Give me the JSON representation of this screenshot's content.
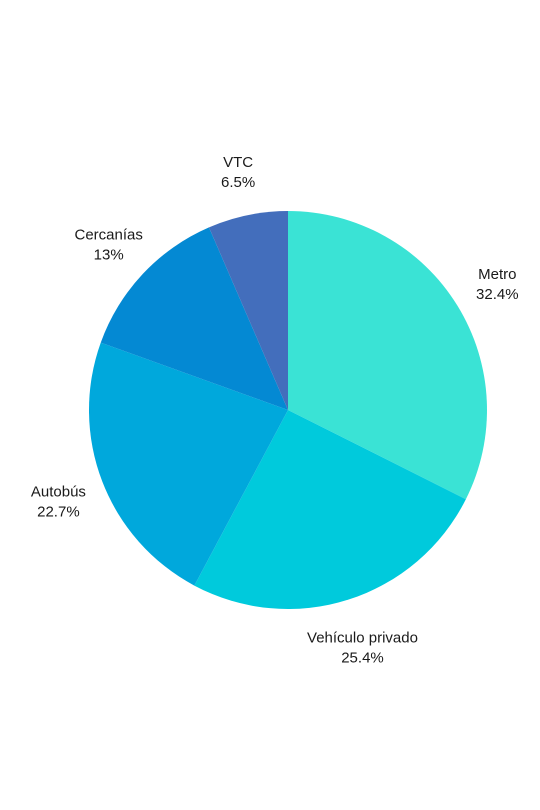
{
  "chart_data": {
    "type": "pie",
    "title": "",
    "start_angle_deg": 0,
    "direction": "clockwise",
    "slices": [
      {
        "label": "Metro",
        "value": 32.4,
        "value_label": "32.4%",
        "color": "#3ae3d5"
      },
      {
        "label": "Vehículo privado",
        "value": 25.4,
        "value_label": "25.4%",
        "color": "#00cadc"
      },
      {
        "label": "Autobús",
        "value": 22.7,
        "value_label": "22.7%",
        "color": "#00a8dc"
      },
      {
        "label": "Cercanías",
        "value": 13,
        "value_label": "13%",
        "color": "#0489d3"
      },
      {
        "label": "VTC",
        "value": 6.5,
        "value_label": "6.5%",
        "color": "#436ebc"
      }
    ]
  }
}
